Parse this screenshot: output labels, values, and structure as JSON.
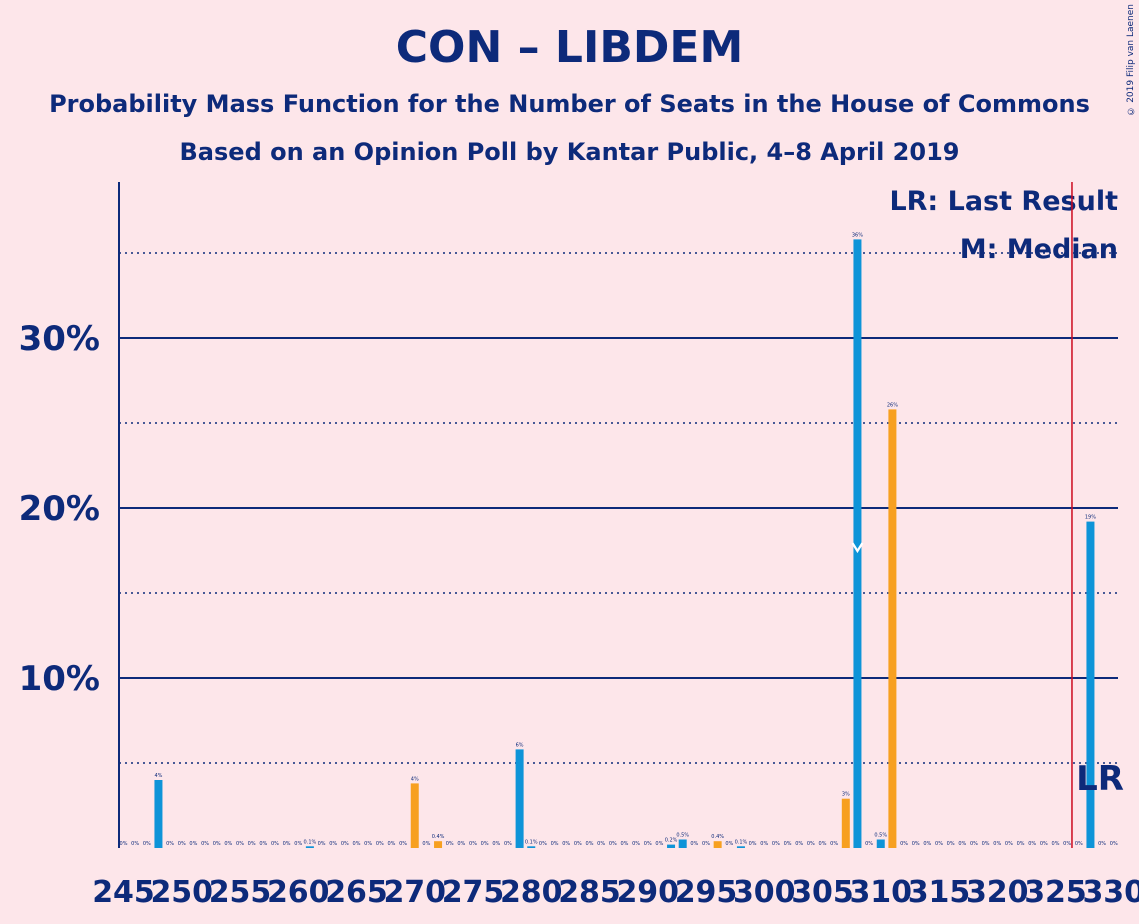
{
  "title": "CON – LIBDEM",
  "subtitle1": "Probability Mass Function for the Number of Seats in the House of Commons",
  "subtitle2": "Based on an Opinion Poll by Kantar Public, 4–8 April 2019",
  "copyright": "© 2019 Filip van Laenen",
  "legend": {
    "lr": "LR: Last Result",
    "median": "M: Median"
  },
  "markers": {
    "last_result_label": "LR",
    "median_label": "M",
    "last_result_seat": 326,
    "median_seat": 308
  },
  "colors": {
    "background": "#fde6ea",
    "text": "#0d2a7a",
    "blue": "#0e94d8",
    "orange": "#f7a020",
    "last_result_line": "#cc0a1f"
  },
  "chart_data": {
    "type": "bar",
    "xmin": 245,
    "xmax": 330,
    "ylim": [
      0,
      39
    ],
    "ytick_labels": [
      {
        "value": 10,
        "label": "10%"
      },
      {
        "value": 20,
        "label": "20%"
      },
      {
        "value": 30,
        "label": "30%"
      }
    ],
    "dotted_gridlines": [
      5,
      15,
      25,
      35
    ],
    "xtick_labels": [
      {
        "value": 245,
        "label": "245"
      },
      {
        "value": 250,
        "label": "250"
      },
      {
        "value": 255,
        "label": "255"
      },
      {
        "value": 260,
        "label": "260"
      },
      {
        "value": 265,
        "label": "265"
      },
      {
        "value": 270,
        "label": "270"
      },
      {
        "value": 275,
        "label": "275"
      },
      {
        "value": 280,
        "label": "280"
      },
      {
        "value": 285,
        "label": "285"
      },
      {
        "value": 290,
        "label": "290"
      },
      {
        "value": 295,
        "label": "295"
      },
      {
        "value": 300,
        "label": "300"
      },
      {
        "value": 305,
        "label": "305"
      },
      {
        "value": 310,
        "label": "310"
      },
      {
        "value": 315,
        "label": "315"
      },
      {
        "value": 320,
        "label": "320"
      },
      {
        "value": 325,
        "label": "325"
      },
      {
        "value": 330,
        "label": "330"
      }
    ],
    "bars": [
      {
        "seat": 245,
        "value": 0,
        "label": "0%",
        "color": "blue"
      },
      {
        "seat": 246,
        "value": 0,
        "label": "0%",
        "color": "blue"
      },
      {
        "seat": 247,
        "value": 0,
        "label": "0%",
        "color": "blue"
      },
      {
        "seat": 248,
        "value": 4,
        "label": "4%",
        "color": "blue"
      },
      {
        "seat": 249,
        "value": 0,
        "label": "0%",
        "color": "blue"
      },
      {
        "seat": 250,
        "value": 0,
        "label": "0%",
        "color": "blue"
      },
      {
        "seat": 251,
        "value": 0,
        "label": "0%",
        "color": "blue"
      },
      {
        "seat": 252,
        "value": 0,
        "label": "0%",
        "color": "blue"
      },
      {
        "seat": 253,
        "value": 0,
        "label": "0%",
        "color": "blue"
      },
      {
        "seat": 254,
        "value": 0,
        "label": "0%",
        "color": "blue"
      },
      {
        "seat": 255,
        "value": 0,
        "label": "0%",
        "color": "blue"
      },
      {
        "seat": 256,
        "value": 0,
        "label": "0%",
        "color": "blue"
      },
      {
        "seat": 257,
        "value": 0,
        "label": "0%",
        "color": "blue"
      },
      {
        "seat": 258,
        "value": 0,
        "label": "0%",
        "color": "blue"
      },
      {
        "seat": 259,
        "value": 0,
        "label": "0%",
        "color": "blue"
      },
      {
        "seat": 260,
        "value": 0,
        "label": "0%",
        "color": "blue"
      },
      {
        "seat": 261,
        "value": 0.1,
        "label": "0.1%",
        "color": "blue"
      },
      {
        "seat": 262,
        "value": 0,
        "label": "0%",
        "color": "blue"
      },
      {
        "seat": 263,
        "value": 0,
        "label": "0%",
        "color": "blue"
      },
      {
        "seat": 264,
        "value": 0,
        "label": "0%",
        "color": "blue"
      },
      {
        "seat": 265,
        "value": 0,
        "label": "0%",
        "color": "blue"
      },
      {
        "seat": 266,
        "value": 0,
        "label": "0%",
        "color": "blue"
      },
      {
        "seat": 267,
        "value": 0,
        "label": "0%",
        "color": "blue"
      },
      {
        "seat": 268,
        "value": 0,
        "label": "0%",
        "color": "blue"
      },
      {
        "seat": 269,
        "value": 0,
        "label": "0%",
        "color": "blue"
      },
      {
        "seat": 270,
        "value": 3.8,
        "label": "4%",
        "color": "orange"
      },
      {
        "seat": 271,
        "value": 0,
        "label": "0%",
        "color": "blue"
      },
      {
        "seat": 272,
        "value": 0.4,
        "label": "0.4%",
        "color": "orange"
      },
      {
        "seat": 273,
        "value": 0,
        "label": "0%",
        "color": "blue"
      },
      {
        "seat": 274,
        "value": 0,
        "label": "0%",
        "color": "blue"
      },
      {
        "seat": 275,
        "value": 0,
        "label": "0%",
        "color": "blue"
      },
      {
        "seat": 276,
        "value": 0,
        "label": "0%",
        "color": "blue"
      },
      {
        "seat": 277,
        "value": 0,
        "label": "0%",
        "color": "blue"
      },
      {
        "seat": 278,
        "value": 0,
        "label": "0%",
        "color": "blue"
      },
      {
        "seat": 279,
        "value": 5.8,
        "label": "6%",
        "color": "blue"
      },
      {
        "seat": 280,
        "value": 0.1,
        "label": "0.1%",
        "color": "blue"
      },
      {
        "seat": 281,
        "value": 0,
        "label": "0%",
        "color": "blue"
      },
      {
        "seat": 282,
        "value": 0,
        "label": "0%",
        "color": "blue"
      },
      {
        "seat": 283,
        "value": 0,
        "label": "0%",
        "color": "blue"
      },
      {
        "seat": 284,
        "value": 0,
        "label": "0%",
        "color": "blue"
      },
      {
        "seat": 285,
        "value": 0,
        "label": "0%",
        "color": "blue"
      },
      {
        "seat": 286,
        "value": 0,
        "label": "0%",
        "color": "blue"
      },
      {
        "seat": 287,
        "value": 0,
        "label": "0%",
        "color": "blue"
      },
      {
        "seat": 288,
        "value": 0,
        "label": "0%",
        "color": "blue"
      },
      {
        "seat": 289,
        "value": 0,
        "label": "0%",
        "color": "blue"
      },
      {
        "seat": 290,
        "value": 0,
        "label": "0%",
        "color": "blue"
      },
      {
        "seat": 291,
        "value": 0,
        "label": "0%",
        "color": "blue"
      },
      {
        "seat": 292,
        "value": 0.2,
        "label": "0.2%",
        "color": "blue"
      },
      {
        "seat": 293,
        "value": 0.5,
        "label": "0.5%",
        "color": "blue"
      },
      {
        "seat": 294,
        "value": 0,
        "label": "0%",
        "color": "blue"
      },
      {
        "seat": 295,
        "value": 0,
        "label": "0%",
        "color": "blue"
      },
      {
        "seat": 296,
        "value": 0.4,
        "label": "0.4%",
        "color": "orange"
      },
      {
        "seat": 297,
        "value": 0,
        "label": "0%",
        "color": "blue"
      },
      {
        "seat": 298,
        "value": 0.1,
        "label": "0.1%",
        "color": "blue"
      },
      {
        "seat": 299,
        "value": 0,
        "label": "0%",
        "color": "blue"
      },
      {
        "seat": 300,
        "value": 0,
        "label": "0%",
        "color": "blue"
      },
      {
        "seat": 301,
        "value": 0,
        "label": "0%",
        "color": "blue"
      },
      {
        "seat": 302,
        "value": 0,
        "label": "0%",
        "color": "blue"
      },
      {
        "seat": 303,
        "value": 0,
        "label": "0%",
        "color": "blue"
      },
      {
        "seat": 304,
        "value": 0,
        "label": "0%",
        "color": "blue"
      },
      {
        "seat": 305,
        "value": 0,
        "label": "0%",
        "color": "blue"
      },
      {
        "seat": 306,
        "value": 0,
        "label": "0%",
        "color": "blue"
      },
      {
        "seat": 307,
        "value": 2.9,
        "label": "3%",
        "color": "orange"
      },
      {
        "seat": 308,
        "value": 35.8,
        "label": "36%",
        "color": "blue"
      },
      {
        "seat": 309,
        "value": 0,
        "label": "0%",
        "color": "blue"
      },
      {
        "seat": 310,
        "value": 0.5,
        "label": "0.5%",
        "color": "blue"
      },
      {
        "seat": 311,
        "value": 25.8,
        "label": "26%",
        "color": "orange"
      },
      {
        "seat": 312,
        "value": 0,
        "label": "0%",
        "color": "blue"
      },
      {
        "seat": 313,
        "value": 0,
        "label": "0%",
        "color": "blue"
      },
      {
        "seat": 314,
        "value": 0,
        "label": "0%",
        "color": "blue"
      },
      {
        "seat": 315,
        "value": 0,
        "label": "0%",
        "color": "blue"
      },
      {
        "seat": 316,
        "value": 0,
        "label": "0%",
        "color": "blue"
      },
      {
        "seat": 317,
        "value": 0,
        "label": "0%",
        "color": "blue"
      },
      {
        "seat": 318,
        "value": 0,
        "label": "0%",
        "color": "blue"
      },
      {
        "seat": 319,
        "value": 0,
        "label": "0%",
        "color": "blue"
      },
      {
        "seat": 320,
        "value": 0,
        "label": "0%",
        "color": "blue"
      },
      {
        "seat": 321,
        "value": 0,
        "label": "0%",
        "color": "blue"
      },
      {
        "seat": 322,
        "value": 0,
        "label": "0%",
        "color": "blue"
      },
      {
        "seat": 323,
        "value": 0,
        "label": "0%",
        "color": "blue"
      },
      {
        "seat": 324,
        "value": 0,
        "label": "0%",
        "color": "blue"
      },
      {
        "seat": 325,
        "value": 0,
        "label": "0%",
        "color": "blue"
      },
      {
        "seat": 326,
        "value": 0,
        "label": "0%",
        "color": "blue"
      },
      {
        "seat": 327,
        "value": 0,
        "label": "0%",
        "color": "blue"
      },
      {
        "seat": 328,
        "value": 19.2,
        "label": "19%",
        "color": "blue"
      },
      {
        "seat": 329,
        "value": 0,
        "label": "0%",
        "color": "blue"
      },
      {
        "seat": 330,
        "value": 0,
        "label": "0%",
        "color": "blue"
      }
    ]
  }
}
